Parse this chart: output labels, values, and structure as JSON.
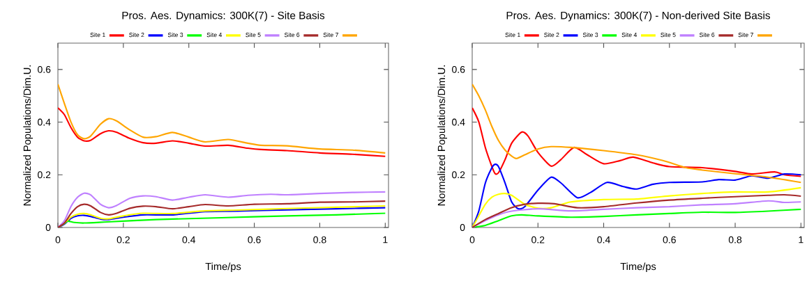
{
  "chart_data": [
    {
      "type": "line",
      "title": "Pros. Aes. Dynamics: 300K(7) - Site Basis",
      "xlabel": "Time/ps",
      "ylabel": "Normalized Populations/Dim.U.",
      "xlim": [
        0,
        1.01
      ],
      "ylim": [
        0,
        0.7
      ],
      "xticks": [
        0,
        0.2,
        0.4,
        0.6,
        0.8,
        1
      ],
      "yticks": [
        0,
        0.2,
        0.4,
        0.6
      ],
      "legend": "top",
      "grid": false,
      "marker": "none",
      "line_style": "solid",
      "series": [
        {
          "name": "Site 1",
          "color": "#ff0000",
          "x": [
            0,
            0.02,
            0.04,
            0.06,
            0.08,
            0.1,
            0.13,
            0.155,
            0.18,
            0.22,
            0.26,
            0.3,
            0.35,
            0.4,
            0.45,
            0.52,
            0.58,
            0.62,
            0.7,
            0.8,
            0.9,
            1.0
          ],
          "values": [
            0.454,
            0.428,
            0.379,
            0.343,
            0.329,
            0.331,
            0.356,
            0.367,
            0.361,
            0.338,
            0.322,
            0.32,
            0.329,
            0.32,
            0.309,
            0.312,
            0.301,
            0.296,
            0.292,
            0.283,
            0.278,
            0.27
          ]
        },
        {
          "name": "Site 2",
          "color": "#0000ff",
          "x": [
            0,
            0.02,
            0.04,
            0.06,
            0.08,
            0.1,
            0.13,
            0.155,
            0.2,
            0.26,
            0.35,
            0.45,
            0.55,
            0.7,
            0.85,
            1.0
          ],
          "values": [
            0,
            0.013,
            0.035,
            0.044,
            0.046,
            0.042,
            0.032,
            0.03,
            0.039,
            0.048,
            0.048,
            0.06,
            0.062,
            0.067,
            0.071,
            0.075
          ]
        },
        {
          "name": "Site 3",
          "color": "#00ff00",
          "x": [
            0,
            0.02,
            0.03,
            0.05,
            0.08,
            0.15,
            0.3,
            0.5,
            0.7,
            0.85,
            1.0
          ],
          "values": [
            0,
            0.015,
            0.024,
            0.019,
            0.017,
            0.021,
            0.03,
            0.037,
            0.044,
            0.048,
            0.054
          ]
        },
        {
          "name": "Site 4",
          "color": "#ffff00",
          "x": [
            0,
            0.02,
            0.04,
            0.06,
            0.08,
            0.1,
            0.13,
            0.155,
            0.2,
            0.26,
            0.35,
            0.45,
            0.55,
            0.7,
            0.85,
            1.0
          ],
          "values": [
            0,
            0.017,
            0.039,
            0.05,
            0.053,
            0.048,
            0.035,
            0.033,
            0.044,
            0.054,
            0.053,
            0.063,
            0.066,
            0.072,
            0.077,
            0.082
          ]
        },
        {
          "name": "Site 5",
          "color": "#bf80ff",
          "x": [
            0,
            0.02,
            0.04,
            0.06,
            0.08,
            0.1,
            0.13,
            0.155,
            0.18,
            0.22,
            0.26,
            0.3,
            0.35,
            0.4,
            0.45,
            0.52,
            0.58,
            0.65,
            0.7,
            0.8,
            0.9,
            1.0
          ],
          "values": [
            0,
            0.026,
            0.08,
            0.115,
            0.13,
            0.124,
            0.088,
            0.075,
            0.084,
            0.111,
            0.12,
            0.117,
            0.104,
            0.115,
            0.124,
            0.115,
            0.122,
            0.126,
            0.124,
            0.129,
            0.133,
            0.135
          ]
        },
        {
          "name": "Site 6",
          "color": "#a52a2a",
          "x": [
            0,
            0.02,
            0.04,
            0.06,
            0.08,
            0.1,
            0.13,
            0.155,
            0.18,
            0.22,
            0.26,
            0.3,
            0.35,
            0.4,
            0.45,
            0.52,
            0.6,
            0.7,
            0.8,
            0.9,
            1.0
          ],
          "values": [
            0,
            0.017,
            0.053,
            0.079,
            0.088,
            0.082,
            0.057,
            0.048,
            0.054,
            0.073,
            0.081,
            0.079,
            0.071,
            0.079,
            0.087,
            0.082,
            0.088,
            0.09,
            0.096,
            0.097,
            0.1
          ]
        },
        {
          "name": "Site 7",
          "color": "#ffa500",
          "x": [
            0,
            0.02,
            0.04,
            0.06,
            0.08,
            0.1,
            0.13,
            0.155,
            0.18,
            0.22,
            0.26,
            0.3,
            0.35,
            0.4,
            0.45,
            0.52,
            0.58,
            0.62,
            0.7,
            0.8,
            0.9,
            1.0
          ],
          "values": [
            0.544,
            0.47,
            0.4,
            0.352,
            0.337,
            0.347,
            0.392,
            0.413,
            0.404,
            0.37,
            0.343,
            0.345,
            0.361,
            0.343,
            0.325,
            0.334,
            0.32,
            0.312,
            0.31,
            0.298,
            0.294,
            0.283
          ]
        }
      ]
    },
    {
      "type": "line",
      "title": "Pros. Aes. Dynamics: 300K(7) - Non-derived Site Basis",
      "xlabel": "Time/ps",
      "ylabel": "Normalized Populations/Dim.U.",
      "xlim": [
        0,
        1.01
      ],
      "ylim": [
        0,
        0.7
      ],
      "xticks": [
        0,
        0.2,
        0.4,
        0.6,
        0.8,
        1
      ],
      "yticks": [
        0,
        0.2,
        0.4,
        0.6
      ],
      "legend": "top",
      "grid": false,
      "marker": "none",
      "line_style": "solid",
      "series": [
        {
          "name": "Site 1",
          "color": "#ff0000",
          "x": [
            0,
            0.02,
            0.04,
            0.06,
            0.07,
            0.08,
            0.1,
            0.12,
            0.15,
            0.17,
            0.2,
            0.24,
            0.27,
            0.31,
            0.35,
            0.4,
            0.45,
            0.49,
            0.55,
            0.6,
            0.7,
            0.8,
            0.85,
            0.92,
            0.95,
            1.0
          ],
          "values": [
            0.454,
            0.401,
            0.303,
            0.231,
            0.204,
            0.208,
            0.258,
            0.32,
            0.362,
            0.347,
            0.285,
            0.233,
            0.258,
            0.304,
            0.276,
            0.242,
            0.254,
            0.267,
            0.245,
            0.231,
            0.227,
            0.213,
            0.203,
            0.211,
            0.2,
            0.194
          ]
        },
        {
          "name": "Site 2",
          "color": "#0000ff",
          "x": [
            0,
            0.02,
            0.04,
            0.06,
            0.07,
            0.08,
            0.1,
            0.12,
            0.14,
            0.16,
            0.2,
            0.24,
            0.27,
            0.32,
            0.36,
            0.41,
            0.46,
            0.5,
            0.55,
            0.6,
            0.7,
            0.75,
            0.8,
            0.85,
            0.9,
            0.95,
            1.0
          ],
          "values": [
            0,
            0.062,
            0.169,
            0.227,
            0.24,
            0.231,
            0.169,
            0.097,
            0.071,
            0.079,
            0.142,
            0.191,
            0.169,
            0.113,
            0.133,
            0.171,
            0.155,
            0.146,
            0.164,
            0.171,
            0.173,
            0.182,
            0.18,
            0.196,
            0.187,
            0.203,
            0.2
          ]
        },
        {
          "name": "Site 3",
          "color": "#00ff00",
          "x": [
            0,
            0.04,
            0.08,
            0.12,
            0.15,
            0.2,
            0.3,
            0.4,
            0.5,
            0.6,
            0.7,
            0.8,
            0.9,
            1.0
          ],
          "values": [
            0,
            0.008,
            0.026,
            0.044,
            0.048,
            0.044,
            0.039,
            0.042,
            0.048,
            0.053,
            0.058,
            0.057,
            0.062,
            0.069
          ]
        },
        {
          "name": "Site 4",
          "color": "#ffff00",
          "x": [
            0,
            0.02,
            0.04,
            0.06,
            0.08,
            0.1,
            0.12,
            0.16,
            0.2,
            0.24,
            0.3,
            0.4,
            0.5,
            0.6,
            0.7,
            0.8,
            0.9,
            1.0
          ],
          "values": [
            0,
            0.044,
            0.088,
            0.115,
            0.126,
            0.129,
            0.122,
            0.088,
            0.073,
            0.075,
            0.097,
            0.106,
            0.108,
            0.12,
            0.129,
            0.135,
            0.135,
            0.151
          ]
        },
        {
          "name": "Site 5",
          "color": "#bf80ff",
          "x": [
            0,
            0.04,
            0.08,
            0.12,
            0.2,
            0.3,
            0.4,
            0.5,
            0.6,
            0.7,
            0.8,
            0.9,
            0.95,
            1.0
          ],
          "values": [
            0,
            0.026,
            0.048,
            0.062,
            0.071,
            0.063,
            0.069,
            0.075,
            0.079,
            0.086,
            0.09,
            0.101,
            0.095,
            0.097
          ]
        },
        {
          "name": "Site 6",
          "color": "#a52a2a",
          "x": [
            0,
            0.04,
            0.08,
            0.12,
            0.16,
            0.2,
            0.25,
            0.32,
            0.4,
            0.5,
            0.6,
            0.7,
            0.8,
            0.9,
            0.95,
            1.0
          ],
          "values": [
            0,
            0.03,
            0.053,
            0.075,
            0.088,
            0.092,
            0.09,
            0.075,
            0.079,
            0.093,
            0.104,
            0.111,
            0.117,
            0.122,
            0.124,
            0.119
          ]
        },
        {
          "name": "Site 7",
          "color": "#ffa500",
          "x": [
            0,
            0.02,
            0.04,
            0.06,
            0.08,
            0.1,
            0.12,
            0.135,
            0.16,
            0.2,
            0.24,
            0.3,
            0.4,
            0.5,
            0.58,
            0.65,
            0.7,
            0.8,
            0.9,
            1.0
          ],
          "values": [
            0.544,
            0.5,
            0.446,
            0.383,
            0.33,
            0.294,
            0.271,
            0.262,
            0.276,
            0.298,
            0.307,
            0.304,
            0.292,
            0.276,
            0.254,
            0.227,
            0.218,
            0.204,
            0.191,
            0.171
          ]
        }
      ]
    }
  ]
}
